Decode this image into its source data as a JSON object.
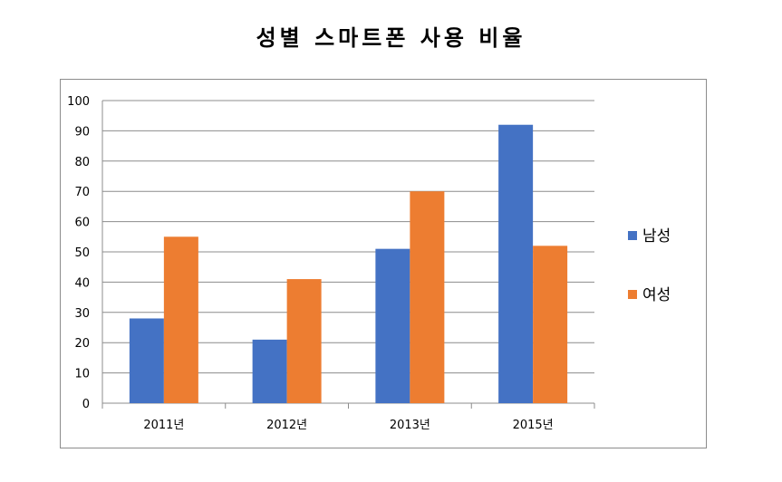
{
  "chart_data": {
    "type": "bar",
    "title": "성별 스마트폰 사용 비율",
    "xlabel": "",
    "ylabel": "",
    "categories": [
      "2011년",
      "2012년",
      "2013년",
      "2015년"
    ],
    "series": [
      {
        "name": "남성",
        "color": "#4472c4",
        "values": [
          28,
          21,
          51,
          92
        ]
      },
      {
        "name": "여성",
        "color": "#ed7d31",
        "values": [
          55,
          41,
          70,
          52
        ]
      }
    ],
    "ylim": [
      0,
      100
    ],
    "yticks": [
      0,
      10,
      20,
      30,
      40,
      50,
      60,
      70,
      80,
      90,
      100
    ],
    "grid": true,
    "legend_position": "right"
  }
}
